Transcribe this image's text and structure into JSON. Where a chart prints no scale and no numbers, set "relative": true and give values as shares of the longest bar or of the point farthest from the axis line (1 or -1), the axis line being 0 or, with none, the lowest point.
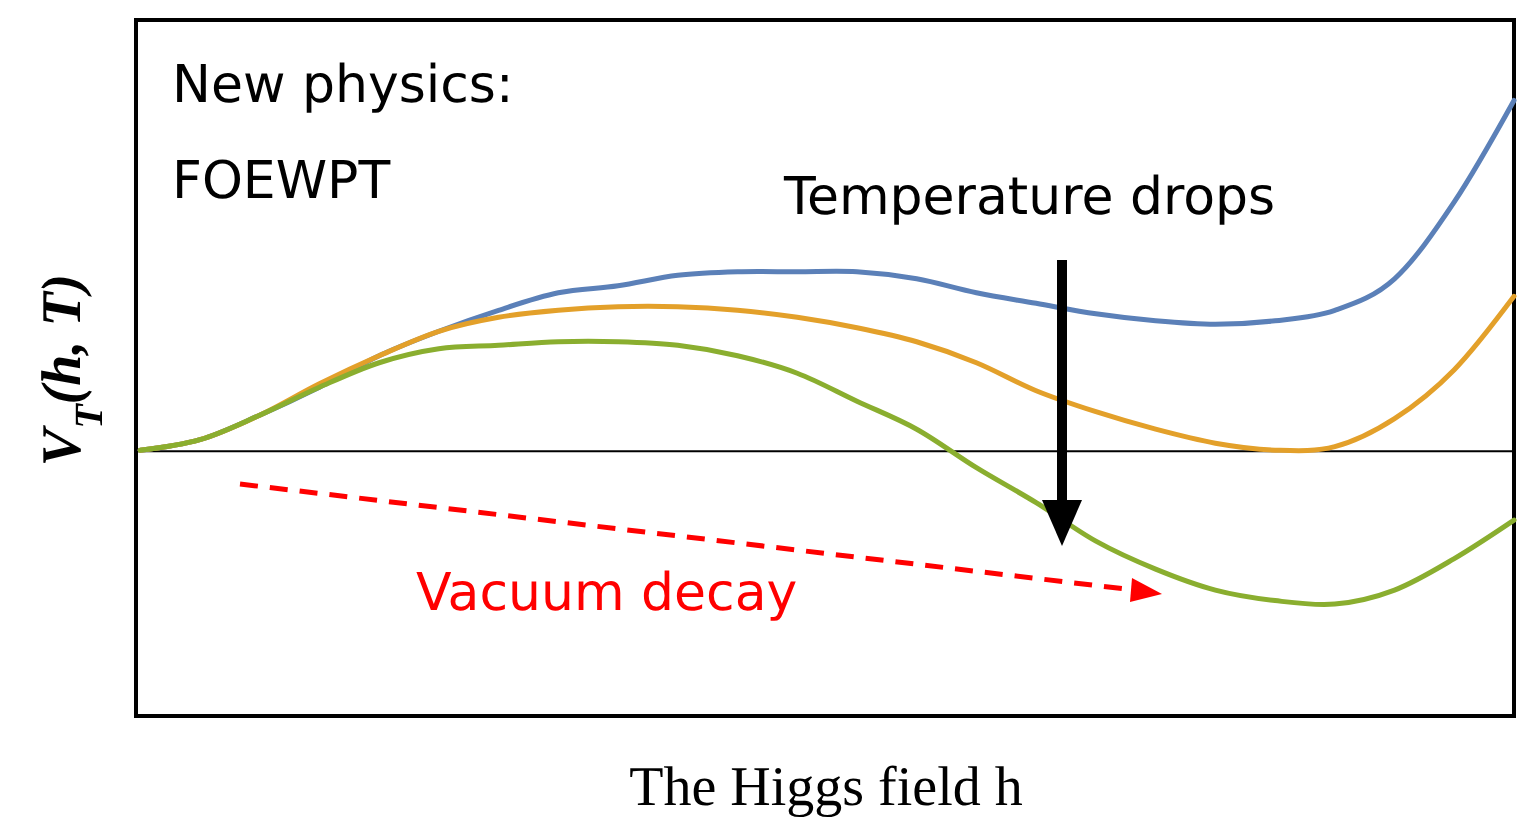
{
  "chart_data": {
    "type": "line",
    "relative": true,
    "xlabel": "The Higgs field h",
    "ylabel": "V$_{T}$(h, T)",
    "annotations": [
      "New physics:",
      "FOEWPT",
      "Temperature drops",
      "Vacuum decay"
    ],
    "categories": [
      null,
      null,
      null,
      null,
      null,
      null,
      null,
      null,
      null,
      null,
      null,
      null,
      null,
      null,
      null,
      null,
      null,
      null,
      null,
      null,
      null,
      null,
      null,
      null
    ],
    "series": [
      {
        "color": "#5b80b8",
        "values": [
          0,
          0.03,
          0.1,
          0.18,
          0.27,
          0.34,
          0.4,
          0.45,
          0.47,
          0.5,
          0.51,
          0.51,
          0.51,
          0.49,
          0.45,
          0.42,
          0.39,
          0.37,
          0.36,
          0.37,
          0.4,
          0.49,
          0.71,
          1
        ]
      },
      {
        "color": "#e3a02a",
        "values": [
          0,
          0.03,
          0.1,
          0.19,
          0.27,
          0.34,
          0.38,
          0.4,
          0.41,
          0.41,
          0.4,
          0.38,
          0.35,
          0.31,
          0.25,
          0.17,
          0.11,
          0.06,
          0.02,
          0,
          0.01,
          0.09,
          0.23,
          0.44
        ]
      },
      {
        "color": "#8aae2f",
        "values": [
          0,
          0.03,
          0.1,
          0.18,
          0.25,
          0.29,
          0.3,
          0.31,
          0.31,
          0.3,
          0.27,
          0.22,
          0.14,
          0.06,
          -0.05,
          -0.15,
          -0.26,
          -0.34,
          -0.4,
          -0.43,
          -0.44,
          -0.4,
          -0.31,
          -0.2
        ]
      }
    ]
  }
}
